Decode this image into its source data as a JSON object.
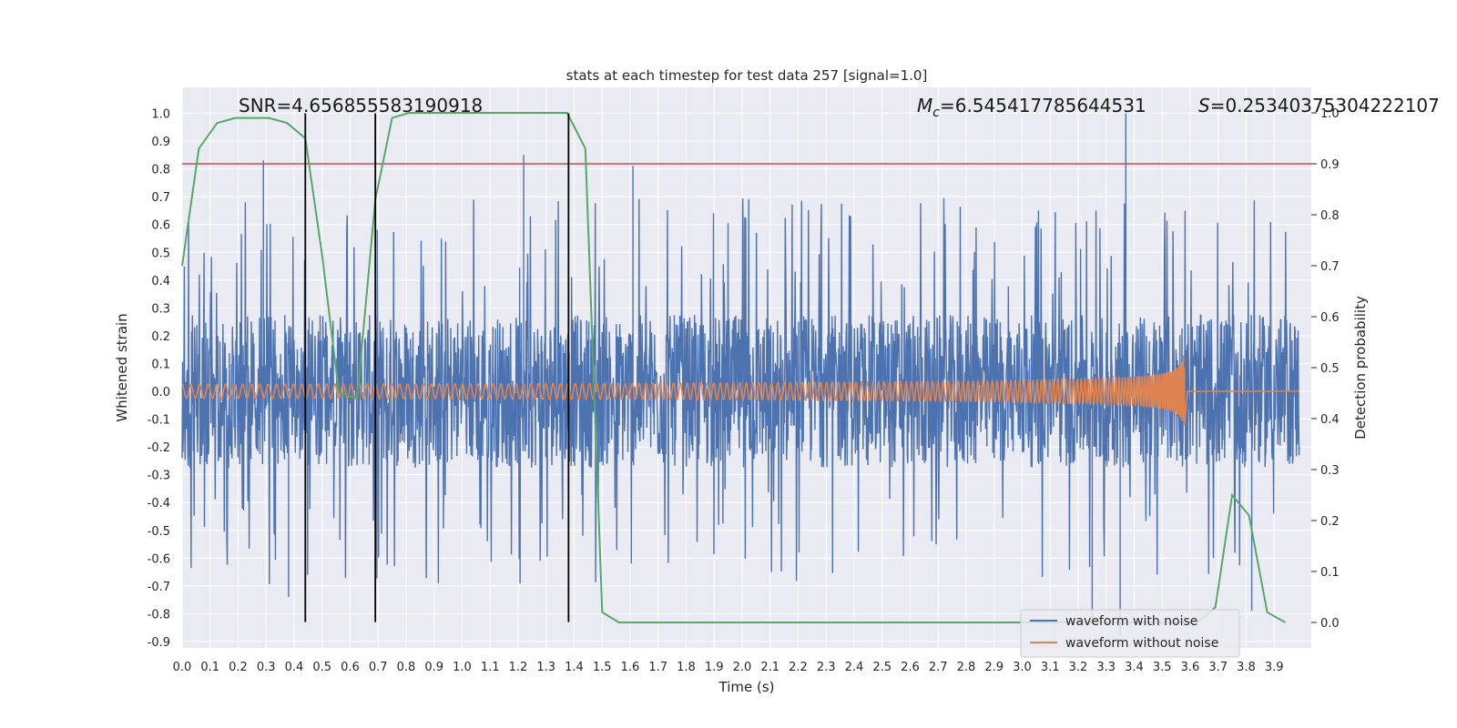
{
  "chart_data": {
    "type": "line",
    "title": "stats at each timestep for test data 257 [signal=1.0]",
    "xlabel": "Time (s)",
    "ylabel": "Whitened strain",
    "ylabel_right": "Detection probability",
    "xlim": [
      0.0,
      3.99
    ],
    "ylim": [
      -0.92,
      1.09
    ],
    "ylim_right": [
      -0.05,
      1.0
    ],
    "grid": true,
    "legend_position": "lower right",
    "x_ticks": [
      "0.0",
      "0.1",
      "0.2",
      "0.3",
      "0.4",
      "0.5",
      "0.6",
      "0.7",
      "0.8",
      "0.9",
      "1.0",
      "1.1",
      "1.2",
      "1.3",
      "1.4",
      "1.5",
      "1.6",
      "1.7",
      "1.8",
      "1.9",
      "2.0",
      "2.1",
      "2.2",
      "2.3",
      "2.4",
      "2.5",
      "2.6",
      "2.7",
      "2.8",
      "2.9",
      "3.0",
      "3.1",
      "3.2",
      "3.3",
      "3.4",
      "3.5",
      "3.6",
      "3.7",
      "3.8",
      "3.9"
    ],
    "y_ticks": [
      "1.0",
      "0.9",
      "0.8",
      "0.7",
      "0.6",
      "0.5",
      "0.4",
      "0.3",
      "0.2",
      "0.1",
      "0.0",
      "-0.1",
      "-0.2",
      "-0.3",
      "-0.4",
      "-0.5",
      "-0.6",
      "-0.7",
      "-0.8",
      "-0.9"
    ],
    "y_ticks_right": [
      "1.0",
      "0.9",
      "0.8",
      "0.7",
      "0.6",
      "0.5",
      "0.4",
      "0.3",
      "0.2",
      "0.1",
      "0.0"
    ],
    "annotations": {
      "snr": "SNR=4.656855583190918",
      "mc_symbol": "M",
      "mc_sub": "c",
      "mc_value": "=6.545417785644531",
      "s_symbol": "S",
      "s_value": "=0.2534037530422210​7"
    },
    "threshold_right": 0.9,
    "vertical_lines_x": [
      0.44,
      0.69,
      1.38
    ],
    "vertical_lines_yrange": [
      -0.83,
      1.0
    ],
    "series": [
      {
        "name": "waveform with noise",
        "color": "#4c72b0",
        "description_values": "noise samples roughly within [-0.9, 1.0], spread about 0",
        "peaks": [
          {
            "x": 0.29,
            "y": 0.83
          },
          {
            "x": 0.44,
            "y": 0.27
          },
          {
            "x": 1.22,
            "y": 0.85
          },
          {
            "x": 1.61,
            "y": 0.81
          },
          {
            "x": 3.37,
            "y": 1.0
          },
          {
            "x": 0.38,
            "y": -0.74
          },
          {
            "x": 3.25,
            "y": -0.82
          },
          {
            "x": 3.35,
            "y": -0.88
          },
          {
            "x": 3.82,
            "y": -0.79
          }
        ]
      },
      {
        "name": "waveform without noise",
        "color": "#dd8452",
        "chirp_end_x": 3.58,
        "chirp_peak_amplitude": 0.13,
        "chirp_start_amplitude": 0.025
      },
      {
        "name": "",
        "color": "#55a868",
        "axis": "right",
        "x": [
          0.0,
          0.06,
          0.125,
          0.19,
          0.25,
          0.31,
          0.375,
          0.44,
          0.5,
          0.56,
          0.625,
          0.69,
          0.75,
          0.81,
          0.875,
          0.94,
          1.0,
          1.06,
          1.125,
          1.19,
          1.25,
          1.31,
          1.375,
          1.44,
          1.5,
          1.56,
          1.625,
          1.69,
          1.75,
          2.0,
          2.5,
          3.0,
          3.5,
          3.625,
          3.69,
          3.75,
          3.81,
          3.875,
          3.94
        ],
        "values": [
          0.7,
          0.93,
          0.98,
          0.99,
          0.99,
          0.99,
          0.98,
          0.95,
          0.72,
          0.45,
          0.44,
          0.83,
          0.99,
          1.0,
          1.0,
          1.0,
          1.0,
          1.0,
          1.0,
          1.0,
          1.0,
          1.0,
          1.0,
          0.93,
          0.02,
          0.0,
          0.0,
          0.0,
          0.0,
          0.0,
          0.0,
          0.0,
          0.0,
          0.0,
          0.03,
          0.25,
          0.21,
          0.02,
          0.0
        ]
      },
      {
        "name": "",
        "color": "#c44e52",
        "axis": "right",
        "type": "hline",
        "values": [
          0.9
        ]
      }
    ],
    "legend": [
      "waveform with noise",
      "waveform without noise"
    ]
  }
}
